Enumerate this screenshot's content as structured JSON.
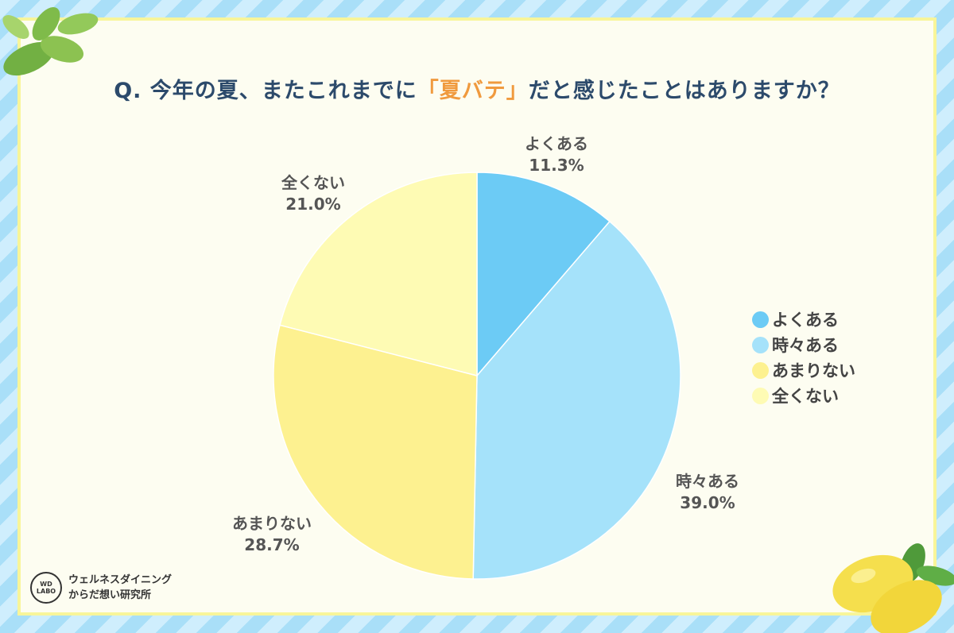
{
  "title": {
    "prefix": "Q. 今年の夏、またこれまでに",
    "highlight": "「夏バテ」",
    "suffix": "だと感じたことはありますか？"
  },
  "chart_data": {
    "type": "pie",
    "categories": [
      "よくある",
      "時々ある",
      "あまりない",
      "全くない"
    ],
    "values": [
      11.3,
      39.0,
      28.7,
      21.0
    ],
    "labels": [
      "11.3%",
      "39.0%",
      "28.7%",
      "21.0%"
    ],
    "colors": [
      "#6ccbf5",
      "#a5e2fa",
      "#fdf190",
      "#fefbb4"
    ],
    "legend_position": "right"
  },
  "legend": {
    "items": [
      {
        "label": "よくある",
        "color": "#6ccbf5"
      },
      {
        "label": "時々ある",
        "color": "#a5e2fa"
      },
      {
        "label": "あまりない",
        "color": "#fdf190"
      },
      {
        "label": "全くない",
        "color": "#fefbb4"
      }
    ]
  },
  "brand": {
    "badge_line1": "WD",
    "badge_line2": "LABO",
    "line1": "ウェルネスダイニング",
    "line2": "からだ想い研究所"
  }
}
